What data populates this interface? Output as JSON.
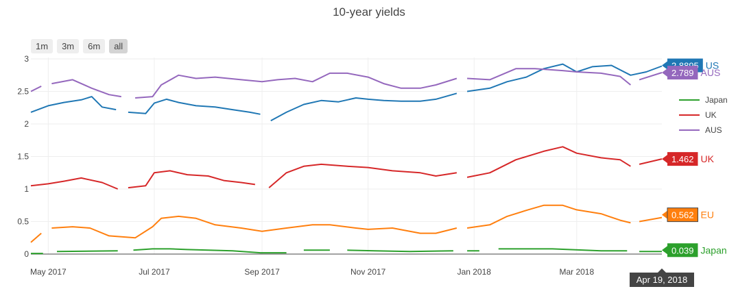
{
  "chart_data": {
    "type": "line",
    "title": "10-year yields",
    "xlabel": "",
    "ylabel": "",
    "x_range": [
      "2017-04-21",
      "2018-04-19"
    ],
    "ylim": [
      0,
      3
    ],
    "y_ticks": [
      0,
      0.5,
      1,
      1.5,
      2,
      2.5,
      3
    ],
    "x_ticks": [
      {
        "date": "2017-05-01",
        "label": "May 2017"
      },
      {
        "date": "2017-07-01",
        "label": "Jul 2017"
      },
      {
        "date": "2017-09-01",
        "label": "Sep 2017"
      },
      {
        "date": "2017-11-01",
        "label": "Nov 2017"
      },
      {
        "date": "2018-01-01",
        "label": "Jan 2018"
      },
      {
        "date": "2018-03-01",
        "label": "Mar 2018"
      }
    ],
    "grid": true,
    "legend_position": "right",
    "legend_entries": [
      "Japan",
      "UK",
      "AUS"
    ],
    "range_buttons": [
      "1m",
      "3m",
      "6m",
      "all"
    ],
    "active_range": "all",
    "hover_label": "Apr 19, 2018",
    "series": [
      {
        "name": "US",
        "color": "#1f77b4",
        "end_value": "2.8895",
        "points": [
          [
            "2017-04-21",
            2.18
          ],
          [
            "2017-05-01",
            2.28
          ],
          [
            "2017-05-10",
            2.33
          ],
          [
            "2017-05-20",
            2.37
          ],
          [
            "2017-05-26",
            2.42
          ],
          [
            "2017-06-01",
            2.26
          ],
          [
            "2017-06-09",
            2.22
          ],
          [
            "2017-06-12",
            null
          ],
          [
            "2017-06-16",
            2.18
          ],
          [
            "2017-06-26",
            2.16
          ],
          [
            "2017-07-01",
            2.32
          ],
          [
            "2017-07-08",
            2.38
          ],
          [
            "2017-07-15",
            2.33
          ],
          [
            "2017-07-25",
            2.28
          ],
          [
            "2017-08-05",
            2.26
          ],
          [
            "2017-08-15",
            2.22
          ],
          [
            "2017-08-25",
            2.18
          ],
          [
            "2017-08-31",
            2.15
          ],
          [
            "2017-09-03",
            null
          ],
          [
            "2017-09-06",
            2.05
          ],
          [
            "2017-09-15",
            2.18
          ],
          [
            "2017-09-25",
            2.3
          ],
          [
            "2017-10-05",
            2.36
          ],
          [
            "2017-10-15",
            2.34
          ],
          [
            "2017-10-25",
            2.4
          ],
          [
            "2017-11-01",
            2.38
          ],
          [
            "2017-11-10",
            2.36
          ],
          [
            "2017-11-20",
            2.35
          ],
          [
            "2017-12-01",
            2.35
          ],
          [
            "2017-12-10",
            2.38
          ],
          [
            "2017-12-22",
            2.47
          ],
          [
            "2017-12-25",
            null
          ],
          [
            "2017-12-28",
            2.5
          ],
          [
            "2018-01-10",
            2.55
          ],
          [
            "2018-01-20",
            2.65
          ],
          [
            "2018-01-31",
            2.72
          ],
          [
            "2018-02-10",
            2.85
          ],
          [
            "2018-02-21",
            2.92
          ],
          [
            "2018-03-01",
            2.8
          ],
          [
            "2018-03-10",
            2.88
          ],
          [
            "2018-03-21",
            2.9
          ],
          [
            "2018-04-01",
            2.75
          ],
          [
            "2018-04-10",
            2.8
          ],
          [
            "2018-04-19",
            2.8895
          ]
        ]
      },
      {
        "name": "UK",
        "color": "#d62728",
        "end_value": "1.462",
        "points": [
          [
            "2017-04-21",
            1.05
          ],
          [
            "2017-05-01",
            1.08
          ],
          [
            "2017-05-10",
            1.12
          ],
          [
            "2017-05-20",
            1.17
          ],
          [
            "2017-06-01",
            1.1
          ],
          [
            "2017-06-10",
            1.0
          ],
          [
            "2017-06-12",
            null
          ],
          [
            "2017-06-16",
            1.02
          ],
          [
            "2017-06-26",
            1.05
          ],
          [
            "2017-07-01",
            1.25
          ],
          [
            "2017-07-10",
            1.28
          ],
          [
            "2017-07-20",
            1.22
          ],
          [
            "2017-08-01",
            1.2
          ],
          [
            "2017-08-10",
            1.13
          ],
          [
            "2017-08-20",
            1.1
          ],
          [
            "2017-08-28",
            1.07
          ],
          [
            "2017-09-01",
            null
          ],
          [
            "2017-09-05",
            1.02
          ],
          [
            "2017-09-15",
            1.25
          ],
          [
            "2017-09-25",
            1.35
          ],
          [
            "2017-10-05",
            1.38
          ],
          [
            "2017-10-20",
            1.35
          ],
          [
            "2017-11-01",
            1.33
          ],
          [
            "2017-11-15",
            1.28
          ],
          [
            "2017-12-01",
            1.25
          ],
          [
            "2017-12-10",
            1.2
          ],
          [
            "2017-12-22",
            1.25
          ],
          [
            "2017-12-25",
            null
          ],
          [
            "2017-12-28",
            1.18
          ],
          [
            "2018-01-10",
            1.25
          ],
          [
            "2018-01-25",
            1.45
          ],
          [
            "2018-02-10",
            1.58
          ],
          [
            "2018-02-21",
            1.65
          ],
          [
            "2018-03-01",
            1.55
          ],
          [
            "2018-03-15",
            1.48
          ],
          [
            "2018-03-26",
            1.45
          ],
          [
            "2018-04-01",
            1.35
          ],
          [
            "2018-04-03",
            null
          ],
          [
            "2018-04-06",
            1.38
          ],
          [
            "2018-04-19",
            1.462
          ]
        ]
      },
      {
        "name": "EU",
        "color": "#ff7f0e",
        "end_value": "0.562",
        "points": [
          [
            "2017-04-21",
            0.18
          ],
          [
            "2017-04-27",
            0.32
          ],
          [
            "2017-05-01",
            null
          ],
          [
            "2017-05-03",
            0.4
          ],
          [
            "2017-05-15",
            0.42
          ],
          [
            "2017-05-25",
            0.4
          ],
          [
            "2017-06-05",
            0.28
          ],
          [
            "2017-06-20",
            0.25
          ],
          [
            "2017-06-30",
            0.42
          ],
          [
            "2017-07-05",
            0.55
          ],
          [
            "2017-07-15",
            0.58
          ],
          [
            "2017-07-25",
            0.55
          ],
          [
            "2017-08-05",
            0.45
          ],
          [
            "2017-08-20",
            0.4
          ],
          [
            "2017-09-01",
            0.35
          ],
          [
            "2017-09-15",
            0.4
          ],
          [
            "2017-09-30",
            0.45
          ],
          [
            "2017-10-10",
            0.45
          ],
          [
            "2017-10-25",
            0.4
          ],
          [
            "2017-11-01",
            0.38
          ],
          [
            "2017-11-15",
            0.4
          ],
          [
            "2017-12-01",
            0.32
          ],
          [
            "2017-12-10",
            0.32
          ],
          [
            "2017-12-22",
            0.4
          ],
          [
            "2017-12-25",
            null
          ],
          [
            "2017-12-28",
            0.4
          ],
          [
            "2018-01-10",
            0.45
          ],
          [
            "2018-01-20",
            0.58
          ],
          [
            "2018-02-01",
            0.68
          ],
          [
            "2018-02-10",
            0.75
          ],
          [
            "2018-02-21",
            0.75
          ],
          [
            "2018-03-01",
            0.68
          ],
          [
            "2018-03-15",
            0.62
          ],
          [
            "2018-03-26",
            0.52
          ],
          [
            "2018-04-01",
            0.48
          ],
          [
            "2018-04-03",
            null
          ],
          [
            "2018-04-06",
            0.5
          ],
          [
            "2018-04-19",
            0.562
          ]
        ]
      },
      {
        "name": "Japan",
        "color": "#2ca02c",
        "end_value": "0.039",
        "points": [
          [
            "2017-04-21",
            0.01
          ],
          [
            "2017-04-28",
            0.01
          ],
          [
            "2017-05-02",
            null
          ],
          [
            "2017-05-06",
            0.04
          ],
          [
            "2017-06-10",
            0.05
          ],
          [
            "2017-06-15",
            null
          ],
          [
            "2017-06-19",
            0.06
          ],
          [
            "2017-06-30",
            0.08
          ],
          [
            "2017-07-10",
            0.08
          ],
          [
            "2017-07-20",
            0.07
          ],
          [
            "2017-08-15",
            0.05
          ],
          [
            "2017-08-31",
            0.02
          ],
          [
            "2017-09-15",
            0.02
          ],
          [
            "2017-09-19",
            null
          ],
          [
            "2017-09-25",
            0.06
          ],
          [
            "2017-10-10",
            0.06
          ],
          [
            "2017-10-15",
            null
          ],
          [
            "2017-10-20",
            0.06
          ],
          [
            "2017-11-05",
            0.05
          ],
          [
            "2017-11-25",
            0.04
          ],
          [
            "2017-12-20",
            0.05
          ],
          [
            "2017-12-25",
            null
          ],
          [
            "2017-12-28",
            0.05
          ],
          [
            "2018-01-04",
            0.05
          ],
          [
            "2018-01-08",
            null
          ],
          [
            "2018-01-15",
            0.08
          ],
          [
            "2018-02-15",
            0.08
          ],
          [
            "2018-03-15",
            0.05
          ],
          [
            "2018-03-30",
            0.05
          ],
          [
            "2018-04-02",
            null
          ],
          [
            "2018-04-06",
            0.04
          ],
          [
            "2018-04-19",
            0.039
          ]
        ]
      },
      {
        "name": "AUS",
        "color": "#9467bd",
        "end_value": "2.789",
        "points": [
          [
            "2017-04-21",
            2.5
          ],
          [
            "2017-04-27",
            2.58
          ],
          [
            "2017-05-01",
            null
          ],
          [
            "2017-05-03",
            2.62
          ],
          [
            "2017-05-15",
            2.68
          ],
          [
            "2017-05-26",
            2.55
          ],
          [
            "2017-06-05",
            2.45
          ],
          [
            "2017-06-12",
            2.42
          ],
          [
            "2017-06-15",
            null
          ],
          [
            "2017-06-20",
            2.4
          ],
          [
            "2017-06-30",
            2.42
          ],
          [
            "2017-07-05",
            2.6
          ],
          [
            "2017-07-15",
            2.75
          ],
          [
            "2017-07-25",
            2.7
          ],
          [
            "2017-08-05",
            2.72
          ],
          [
            "2017-08-20",
            2.68
          ],
          [
            "2017-09-01",
            2.65
          ],
          [
            "2017-09-10",
            2.68
          ],
          [
            "2017-09-20",
            2.7
          ],
          [
            "2017-09-30",
            2.65
          ],
          [
            "2017-10-10",
            2.78
          ],
          [
            "2017-10-20",
            2.78
          ],
          [
            "2017-11-01",
            2.72
          ],
          [
            "2017-11-10",
            2.62
          ],
          [
            "2017-11-20",
            2.55
          ],
          [
            "2017-12-01",
            2.55
          ],
          [
            "2017-12-10",
            2.6
          ],
          [
            "2017-12-22",
            2.7
          ],
          [
            "2017-12-25",
            null
          ],
          [
            "2017-12-28",
            2.7
          ],
          [
            "2018-01-10",
            2.68
          ],
          [
            "2018-01-25",
            2.85
          ],
          [
            "2018-02-05",
            2.85
          ],
          [
            "2018-02-21",
            2.82
          ],
          [
            "2018-03-01",
            2.8
          ],
          [
            "2018-03-15",
            2.78
          ],
          [
            "2018-03-26",
            2.73
          ],
          [
            "2018-04-01",
            2.6
          ],
          [
            "2018-04-03",
            null
          ],
          [
            "2018-04-06",
            2.68
          ],
          [
            "2018-04-19",
            2.789
          ]
        ]
      }
    ]
  }
}
